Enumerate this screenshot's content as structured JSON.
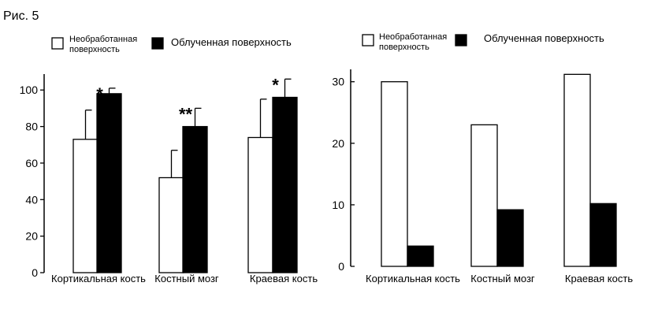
{
  "figure_label": "Рис. 5",
  "chart_data": [
    {
      "type": "bar",
      "categories": [
        "Кортикальная кость",
        "Костный мозг",
        "Краевая кость"
      ],
      "series": [
        {
          "name": "Необработанная поверхность",
          "color": "#ffffff",
          "values": [
            73,
            52,
            74
          ],
          "errors": [
            16,
            15,
            21
          ]
        },
        {
          "name": "Облученная поверхность",
          "color": "#000000",
          "values": [
            98,
            80,
            96
          ],
          "errors": [
            3,
            10,
            10
          ]
        }
      ],
      "annotations": [
        "*",
        "**",
        "*"
      ],
      "yticks": [
        0,
        20,
        40,
        60,
        80,
        100
      ],
      "ylim": [
        0,
        107
      ],
      "legend_position": "top",
      "grid": false
    },
    {
      "type": "bar",
      "categories": [
        "Кортикальная кость",
        "Костный мозг",
        "Краевая кость"
      ],
      "series": [
        {
          "name": "Необработанная поверхность",
          "color": "#ffffff",
          "values": [
            30,
            23,
            31.2
          ]
        },
        {
          "name": "Облученная поверхность",
          "color": "#000000",
          "values": [
            3.3,
            9.2,
            10.2
          ]
        }
      ],
      "yticks": [
        0,
        10,
        20,
        30
      ],
      "ylim": [
        0,
        31.5
      ],
      "legend_position": "top",
      "grid": false
    }
  ]
}
